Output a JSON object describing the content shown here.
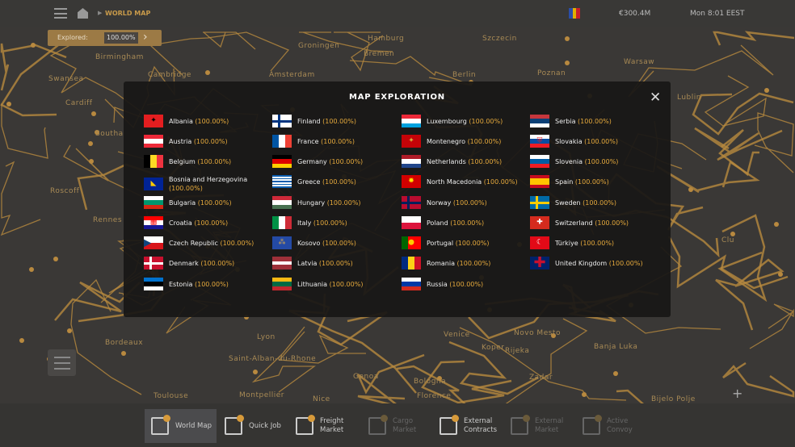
{
  "topbar": {
    "breadcrumb": "WORLD MAP",
    "money": "€300.4M",
    "time": "Mon 8:01 EEST",
    "flag_colors": [
      "#2b4ea8",
      "#e0b000",
      "#c8202a"
    ]
  },
  "explored": {
    "label": "Explored:",
    "value": "100.00%"
  },
  "map_labels": [
    "Groningen",
    "Hamburg",
    "Szczecin",
    "Bremen",
    "Birmingham",
    "Cambridge",
    "Swansea",
    "Cardiff",
    "Amsterdam",
    "Berlin",
    "Poznan",
    "Warsaw",
    "Lublin",
    "Southa",
    "Roscoff",
    "Rennes",
    "Lyon",
    "Venice",
    "Novo Mesto",
    "Bordeaux",
    "Saint-Alban-du-Rhone",
    "Toulouse",
    "Montpellier",
    "Genoa",
    "Bologna",
    "Florence",
    "Rijeka",
    "Koper",
    "Banja Luka",
    "Zadar",
    "Bijelo Polje",
    "Nice",
    "Clu"
  ],
  "modal": {
    "title": "MAP EXPLORATION"
  },
  "columns": [
    [
      {
        "name": "Albania",
        "pct": "(100.00%)",
        "flag": {
          "dir": "v",
          "colors": [
            "#e41e20"
          ],
          "mark": "✦",
          "markColor": "#000"
        }
      },
      {
        "name": "Austria",
        "pct": "(100.00%)",
        "flag": {
          "dir": "h",
          "colors": [
            "#ed2939",
            "#ffffff",
            "#ed2939"
          ]
        }
      },
      {
        "name": "Belgium",
        "pct": "(100.00%)",
        "flag": {
          "dir": "v",
          "colors": [
            "#000000",
            "#fdda24",
            "#ef3340"
          ]
        }
      },
      {
        "name": "Bosnia and Herzegovina",
        "pct": "(100.00%)",
        "flag": {
          "dir": "v",
          "colors": [
            "#002395"
          ],
          "mark": "◣",
          "markColor": "#fecb00"
        }
      },
      {
        "name": "Bulgaria",
        "pct": "(100.00%)",
        "flag": {
          "dir": "h",
          "colors": [
            "#ffffff",
            "#00966e",
            "#d62612"
          ]
        }
      },
      {
        "name": "Croatia",
        "pct": "(100.00%)",
        "flag": {
          "dir": "h",
          "colors": [
            "#ff0000",
            "#ffffff",
            "#171796"
          ],
          "mark": "▦",
          "markColor": "#ff0000"
        }
      },
      {
        "name": "Czech Republic",
        "pct": "(100.00%)",
        "flag": {
          "dir": "h",
          "colors": [
            "#ffffff",
            "#d7141a"
          ],
          "mark": "◀",
          "markColor": "#11457e",
          "left": true
        }
      },
      {
        "name": "Denmark",
        "pct": "(100.00%)",
        "flag": {
          "dir": "v",
          "colors": [
            "#c8102e"
          ],
          "cross": "#ffffff"
        }
      },
      {
        "name": "Estonia",
        "pct": "(100.00%)",
        "flag": {
          "dir": "h",
          "colors": [
            "#0072ce",
            "#000000",
            "#ffffff"
          ]
        }
      }
    ],
    [
      {
        "name": "Finland",
        "pct": "(100.00%)",
        "flag": {
          "dir": "v",
          "colors": [
            "#ffffff"
          ],
          "cross": "#003580"
        }
      },
      {
        "name": "France",
        "pct": "(100.00%)",
        "flag": {
          "dir": "v",
          "colors": [
            "#0055a4",
            "#ffffff",
            "#ef4135"
          ]
        }
      },
      {
        "name": "Germany",
        "pct": "(100.00%)",
        "flag": {
          "dir": "h",
          "colors": [
            "#000000",
            "#dd0000",
            "#ffce00"
          ]
        }
      },
      {
        "name": "Greece",
        "pct": "(100.00%)",
        "flag": {
          "dir": "h",
          "colors": [
            "#0d5eaf",
            "#ffffff",
            "#0d5eaf",
            "#ffffff",
            "#0d5eaf",
            "#ffffff",
            "#0d5eaf",
            "#ffffff",
            "#0d5eaf"
          ]
        }
      },
      {
        "name": "Hungary",
        "pct": "(100.00%)",
        "flag": {
          "dir": "h",
          "colors": [
            "#ce2939",
            "#ffffff",
            "#477050"
          ]
        }
      },
      {
        "name": "Italy",
        "pct": "(100.00%)",
        "flag": {
          "dir": "v",
          "colors": [
            "#009246",
            "#ffffff",
            "#ce2b37"
          ]
        }
      },
      {
        "name": "Kosovo",
        "pct": "(100.00%)",
        "flag": {
          "dir": "v",
          "colors": [
            "#244aa5"
          ],
          "mark": "⁂",
          "markColor": "#d0a650"
        }
      },
      {
        "name": "Latvia",
        "pct": "(100.00%)",
        "flag": {
          "dir": "h",
          "colors": [
            "#9e3039",
            "#9e3039",
            "#ffffff",
            "#9e3039",
            "#9e3039"
          ]
        }
      },
      {
        "name": "Lithuania",
        "pct": "(100.00%)",
        "flag": {
          "dir": "h",
          "colors": [
            "#fdb913",
            "#006a44",
            "#c1272d"
          ]
        }
      }
    ],
    [
      {
        "name": "Luxembourg",
        "pct": "(100.00%)",
        "flag": {
          "dir": "h",
          "colors": [
            "#ed2939",
            "#ffffff",
            "#00a1de"
          ]
        }
      },
      {
        "name": "Montenegro",
        "pct": "(100.00%)",
        "flag": {
          "dir": "v",
          "colors": [
            "#c40308"
          ],
          "mark": "✦",
          "markColor": "#d4af3a"
        }
      },
      {
        "name": "Netherlands",
        "pct": "(100.00%)",
        "flag": {
          "dir": "h",
          "colors": [
            "#ae1c28",
            "#ffffff",
            "#21468b"
          ]
        }
      },
      {
        "name": "North Macedonia",
        "pct": "(100.00%)",
        "flag": {
          "dir": "v",
          "colors": [
            "#d20000"
          ],
          "mark": "✹",
          "markColor": "#ffe600"
        }
      },
      {
        "name": "Norway",
        "pct": "(100.00%)",
        "flag": {
          "dir": "v",
          "colors": [
            "#ba0c2f"
          ],
          "cross": "#00205b"
        }
      },
      {
        "name": "Poland",
        "pct": "(100.00%)",
        "flag": {
          "dir": "h",
          "colors": [
            "#ffffff",
            "#dc143c"
          ]
        }
      },
      {
        "name": "Portugal",
        "pct": "(100.00%)",
        "flag": {
          "dir": "v",
          "colors": [
            "#006600",
            "#ff0000",
            "#ff0000"
          ],
          "mark": "●",
          "markColor": "#ffcc00"
        }
      },
      {
        "name": "Romania",
        "pct": "(100.00%)",
        "flag": {
          "dir": "v",
          "colors": [
            "#002b7f",
            "#fcd116",
            "#ce1126"
          ]
        }
      },
      {
        "name": "Russia",
        "pct": "(100.00%)",
        "flag": {
          "dir": "h",
          "colors": [
            "#ffffff",
            "#0039a6",
            "#d52b1e"
          ]
        }
      }
    ],
    [
      {
        "name": "Serbia",
        "pct": "(100.00%)",
        "flag": {
          "dir": "h",
          "colors": [
            "#c6363c",
            "#0c4076",
            "#ffffff"
          ]
        }
      },
      {
        "name": "Slovakia",
        "pct": "(100.00%)",
        "flag": {
          "dir": "h",
          "colors": [
            "#ffffff",
            "#0b4ea2",
            "#ee1c25"
          ],
          "mark": "⛨",
          "markColor": "#ee1c25"
        }
      },
      {
        "name": "Slovenia",
        "pct": "(100.00%)",
        "flag": {
          "dir": "h",
          "colors": [
            "#ffffff",
            "#005da4",
            "#ed1c24"
          ]
        }
      },
      {
        "name": "Spain",
        "pct": "(100.00%)",
        "flag": {
          "dir": "h",
          "colors": [
            "#c60b1e",
            "#ffc400",
            "#ffc400",
            "#c60b1e"
          ]
        }
      },
      {
        "name": "Sweden",
        "pct": "(100.00%)",
        "flag": {
          "dir": "v",
          "colors": [
            "#006aa7"
          ],
          "cross": "#fecc00"
        }
      },
      {
        "name": "Switzerland",
        "pct": "(100.00%)",
        "flag": {
          "dir": "v",
          "colors": [
            "#d52b1e"
          ],
          "mark": "✚",
          "markColor": "#ffffff",
          "square": true
        }
      },
      {
        "name": "Türkiye",
        "pct": "(100.00%)",
        "flag": {
          "dir": "v",
          "colors": [
            "#e30a17"
          ],
          "mark": "☾",
          "markColor": "#ffffff"
        }
      },
      {
        "name": "United Kingdom",
        "pct": "(100.00%)",
        "flag": {
          "dir": "v",
          "colors": [
            "#012169"
          ],
          "mark": "✚",
          "markColor": "#c8102e",
          "big": true
        }
      }
    ]
  ],
  "bottom_tabs": [
    {
      "label": "World Map",
      "active": true,
      "enabled": true
    },
    {
      "label": "Quick Job",
      "enabled": true
    },
    {
      "label": "Freight Market",
      "enabled": true
    },
    {
      "label": "Cargo Market",
      "enabled": false
    },
    {
      "label": "External Contracts",
      "enabled": true
    },
    {
      "label": "External Market",
      "enabled": false
    },
    {
      "label": "Active Convoy",
      "enabled": false
    }
  ],
  "colors": {
    "accent": "#e5a93c",
    "road": "#b8893f"
  }
}
